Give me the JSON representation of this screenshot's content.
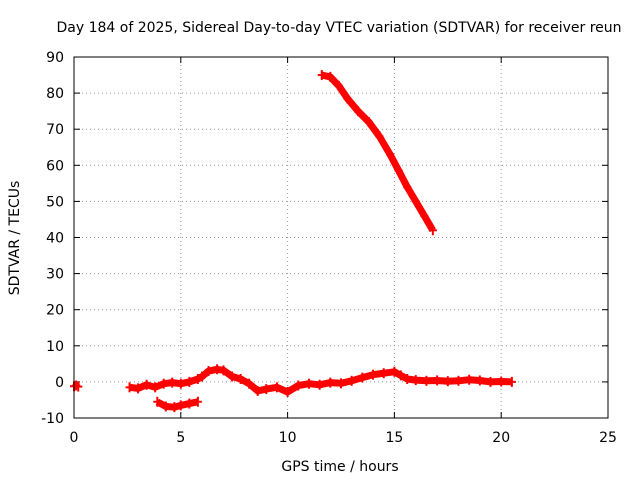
{
  "chart_data": {
    "type": "scatter",
    "title": "Day 184 of 2025, Sidereal Day-to-day VTEC variation (SDTVAR) for receiver reun",
    "xlabel": "GPS time / hours",
    "ylabel": "SDTVAR / TECUs",
    "xlim": [
      0,
      25
    ],
    "ylim": [
      -10,
      90
    ],
    "xticks": [
      0,
      5,
      10,
      15,
      20,
      25
    ],
    "yticks": [
      -10,
      0,
      10,
      20,
      30,
      40,
      50,
      60,
      70,
      80,
      90
    ],
    "xtick_labels": [
      "0",
      "5",
      "10",
      "15",
      "20",
      "25"
    ],
    "ytick_labels": [
      "-10",
      "0",
      "10",
      "20",
      "30",
      "40",
      "50",
      "60",
      "70",
      "80",
      "90"
    ],
    "grid": true,
    "series": [
      {
        "name": "SDTVAR",
        "color": "#ff0000",
        "segments": [
          [
            [
              0.0,
              -1.2
            ],
            [
              0.1,
              -1.0
            ],
            [
              0.2,
              -1.3
            ]
          ],
          [
            [
              2.6,
              -1.5
            ],
            [
              3.0,
              -1.8
            ],
            [
              3.4,
              -0.8
            ],
            [
              3.8,
              -1.5
            ],
            [
              4.2,
              -0.5
            ],
            [
              4.6,
              -0.2
            ],
            [
              5.0,
              -0.5
            ],
            [
              5.4,
              0.0
            ],
            [
              5.8,
              0.8
            ],
            [
              6.0,
              1.5
            ],
            [
              6.3,
              3.0
            ],
            [
              6.7,
              3.5
            ],
            [
              7.0,
              3.2
            ],
            [
              7.4,
              1.5
            ],
            [
              7.8,
              0.8
            ],
            [
              8.2,
              -0.5
            ],
            [
              8.6,
              -2.5
            ],
            [
              9.0,
              -2.0
            ],
            [
              9.5,
              -1.5
            ],
            [
              10.0,
              -2.8
            ],
            [
              10.5,
              -1.0
            ],
            [
              11.0,
              -0.5
            ],
            [
              11.5,
              -0.8
            ],
            [
              12.0,
              -0.2
            ],
            [
              12.5,
              -0.4
            ],
            [
              13.0,
              0.3
            ],
            [
              13.5,
              1.2
            ],
            [
              14.0,
              2.0
            ],
            [
              14.5,
              2.4
            ],
            [
              15.0,
              2.8
            ],
            [
              15.3,
              1.8
            ],
            [
              15.6,
              0.8
            ],
            [
              16.0,
              0.5
            ],
            [
              16.5,
              0.3
            ],
            [
              17.0,
              0.4
            ],
            [
              17.5,
              0.2
            ],
            [
              18.0,
              0.3
            ],
            [
              18.5,
              0.6
            ],
            [
              19.0,
              0.4
            ],
            [
              19.5,
              0.0
            ],
            [
              20.0,
              0.1
            ],
            [
              20.5,
              0.0
            ]
          ],
          [
            [
              3.9,
              -5.5
            ],
            [
              4.3,
              -6.8
            ],
            [
              4.7,
              -7.0
            ],
            [
              5.0,
              -6.5
            ],
            [
              5.4,
              -6.0
            ],
            [
              5.8,
              -5.5
            ]
          ],
          [
            [
              11.6,
              85.0
            ],
            [
              12.0,
              84.5
            ],
            [
              12.4,
              82.0
            ],
            [
              12.8,
              78.5
            ],
            [
              13.3,
              75.0
            ],
            [
              13.8,
              72.0
            ],
            [
              14.3,
              68.0
            ],
            [
              14.8,
              63.0
            ],
            [
              15.2,
              58.5
            ],
            [
              15.6,
              54.0
            ],
            [
              16.0,
              50.0
            ],
            [
              16.4,
              46.0
            ],
            [
              16.8,
              42.0
            ]
          ]
        ]
      }
    ]
  }
}
